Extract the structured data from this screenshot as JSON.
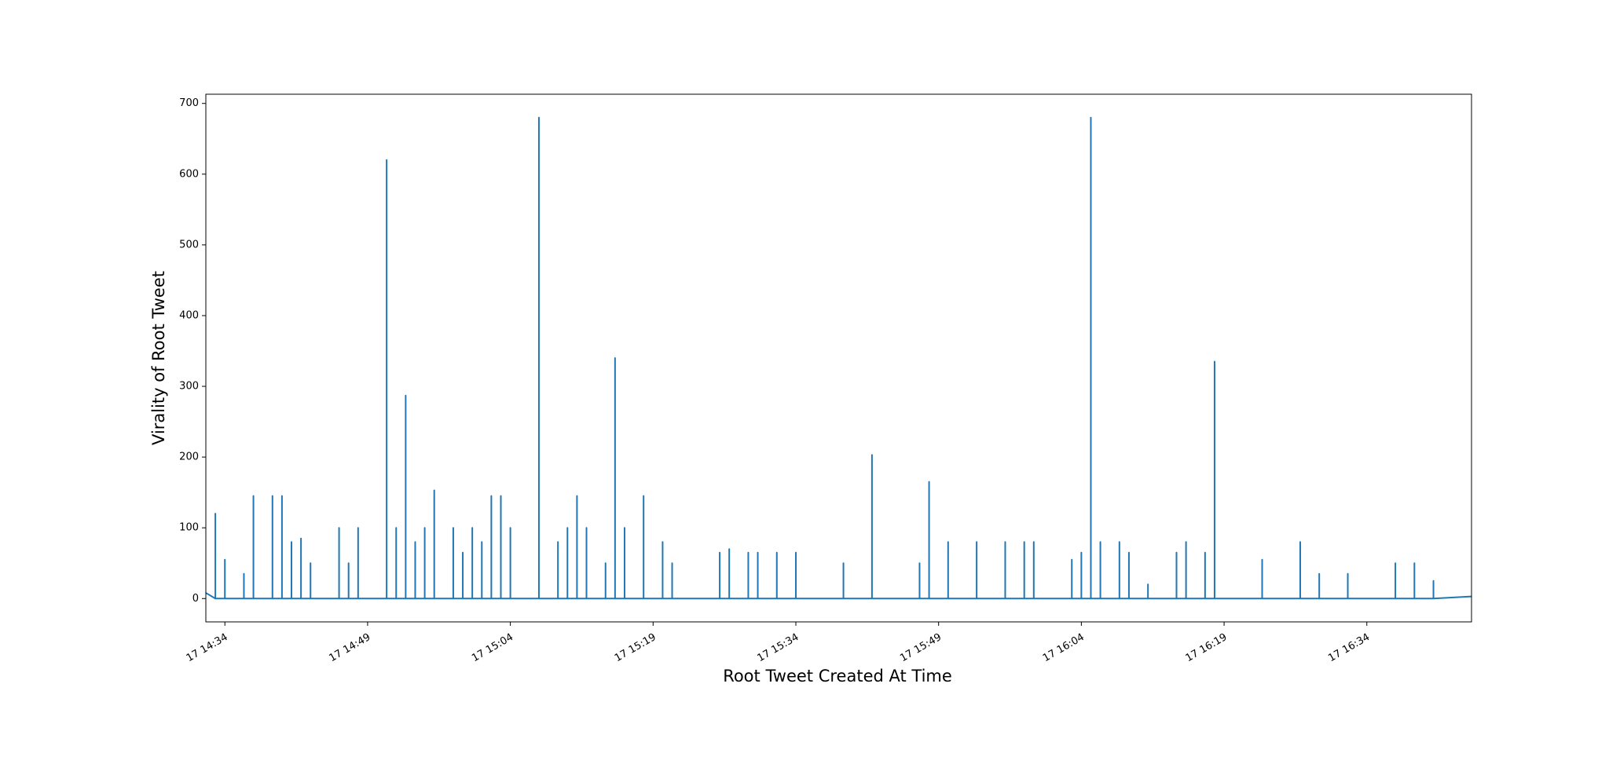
{
  "chart_data": {
    "type": "line",
    "xlabel": "Root Tweet Created At Time",
    "ylabel": "Virality of Root Tweet",
    "xlim": [
      "17 14:32",
      "17 16:45"
    ],
    "xticks": [
      "17 14:34",
      "17 14:49",
      "17 15:04",
      "17 15:19",
      "17 15:34",
      "17 15:49",
      "17 16:04",
      "17 16:19",
      "17 16:34"
    ],
    "ylim": [
      -33,
      713
    ],
    "yticks": [
      0,
      100,
      200,
      300,
      400,
      500,
      600,
      700
    ],
    "series": [
      {
        "color": "#1f77b4",
        "x": [
          "17 14:32",
          "17 14:33",
          "17 14:33",
          "17 14:33",
          "17 14:34",
          "17 14:34",
          "17 14:34",
          "17 14:36",
          "17 14:36",
          "17 14:36",
          "17 14:37",
          "17 14:37",
          "17 14:37",
          "17 14:39",
          "17 14:39",
          "17 14:39",
          "17 14:40",
          "17 14:40",
          "17 14:40",
          "17 14:41",
          "17 14:41",
          "17 14:41",
          "17 14:42",
          "17 14:42",
          "17 14:42",
          "17 14:43",
          "17 14:43",
          "17 14:43",
          "17 14:46",
          "17 14:46",
          "17 14:46",
          "17 14:47",
          "17 14:47",
          "17 14:47",
          "17 14:48",
          "17 14:48",
          "17 14:48",
          "17 14:51",
          "17 14:51",
          "17 14:51",
          "17 14:52",
          "17 14:52",
          "17 14:52",
          "17 14:53",
          "17 14:53",
          "17 14:53",
          "17 14:54",
          "17 14:54",
          "17 14:54",
          "17 14:55",
          "17 14:55",
          "17 14:55",
          "17 14:56",
          "17 14:56",
          "17 14:56",
          "17 14:58",
          "17 14:58",
          "17 14:58",
          "17 14:59",
          "17 14:59",
          "17 14:59",
          "17 15:00",
          "17 15:00",
          "17 15:00",
          "17 15:01",
          "17 15:01",
          "17 15:01",
          "17 15:02",
          "17 15:02",
          "17 15:02",
          "17 15:03",
          "17 15:03",
          "17 15:03",
          "17 15:04",
          "17 15:04",
          "17 15:04",
          "17 15:07",
          "17 15:07",
          "17 15:07",
          "17 15:09",
          "17 15:09",
          "17 15:09",
          "17 15:10",
          "17 15:10",
          "17 15:10",
          "17 15:11",
          "17 15:11",
          "17 15:11",
          "17 15:12",
          "17 15:12",
          "17 15:12",
          "17 15:14",
          "17 15:14",
          "17 15:14",
          "17 15:15",
          "17 15:15",
          "17 15:15",
          "17 15:16",
          "17 15:16",
          "17 15:16",
          "17 15:18",
          "17 15:18",
          "17 15:18",
          "17 15:20",
          "17 15:20",
          "17 15:20",
          "17 15:21",
          "17 15:21",
          "17 15:21",
          "17 15:26",
          "17 15:26",
          "17 15:26",
          "17 15:27",
          "17 15:27",
          "17 15:27",
          "17 15:29",
          "17 15:29",
          "17 15:29",
          "17 15:30",
          "17 15:30",
          "17 15:30",
          "17 15:32",
          "17 15:32",
          "17 15:32",
          "17 15:34",
          "17 15:34",
          "17 15:34",
          "17 15:39",
          "17 15:39",
          "17 15:39",
          "17 15:42",
          "17 15:42",
          "17 15:42",
          "17 15:47",
          "17 15:47",
          "17 15:47",
          "17 15:48",
          "17 15:48",
          "17 15:48",
          "17 15:50",
          "17 15:50",
          "17 15:50",
          "17 15:53",
          "17 15:53",
          "17 15:53",
          "17 15:56",
          "17 15:56",
          "17 15:56",
          "17 15:58",
          "17 15:58",
          "17 15:58",
          "17 15:59",
          "17 15:59",
          "17 15:59",
          "17 16:03",
          "17 16:03",
          "17 16:03",
          "17 16:04",
          "17 16:04",
          "17 16:04",
          "17 16:05",
          "17 16:05",
          "17 16:05",
          "17 16:06",
          "17 16:06",
          "17 16:06",
          "17 16:08",
          "17 16:08",
          "17 16:08",
          "17 16:09",
          "17 16:09",
          "17 16:09",
          "17 16:11",
          "17 16:11",
          "17 16:11",
          "17 16:14",
          "17 16:14",
          "17 16:14",
          "17 16:15",
          "17 16:15",
          "17 16:15",
          "17 16:17",
          "17 16:17",
          "17 16:17",
          "17 16:18",
          "17 16:18",
          "17 16:18",
          "17 16:23",
          "17 16:23",
          "17 16:23",
          "17 16:27",
          "17 16:27",
          "17 16:27",
          "17 16:29",
          "17 16:29",
          "17 16:29",
          "17 16:32",
          "17 16:32",
          "17 16:32",
          "17 16:37",
          "17 16:37",
          "17 16:37",
          "17 16:39",
          "17 16:39",
          "17 16:39",
          "17 16:41",
          "17 16:41",
          "17 16:41",
          "17 16:45"
        ],
        "values": [
          8,
          0,
          120,
          0,
          0,
          55,
          0,
          0,
          35,
          0,
          0,
          145,
          0,
          0,
          145,
          0,
          0,
          145,
          0,
          0,
          80,
          0,
          0,
          85,
          0,
          0,
          50,
          0,
          0,
          100,
          0,
          0,
          50,
          0,
          0,
          100,
          0,
          0,
          620,
          0,
          0,
          100,
          0,
          0,
          287,
          0,
          0,
          80,
          0,
          0,
          100,
          0,
          0,
          153,
          0,
          0,
          100,
          0,
          0,
          65,
          0,
          0,
          100,
          0,
          0,
          80,
          0,
          0,
          145,
          0,
          0,
          145,
          0,
          0,
          100,
          0,
          0,
          680,
          0,
          0,
          80,
          0,
          0,
          100,
          0,
          0,
          145,
          0,
          0,
          100,
          0,
          0,
          50,
          0,
          0,
          340,
          0,
          0,
          100,
          0,
          0,
          145,
          0,
          0,
          80,
          0,
          0,
          50,
          0,
          0,
          65,
          0,
          0,
          70,
          0,
          0,
          65,
          0,
          0,
          65,
          0,
          0,
          65,
          0,
          0,
          65,
          0,
          0,
          50,
          0,
          0,
          203,
          0,
          0,
          50,
          0,
          0,
          165,
          0,
          0,
          80,
          0,
          0,
          80,
          0,
          0,
          80,
          0,
          0,
          80,
          0,
          0,
          80,
          0,
          0,
          55,
          0,
          0,
          65,
          0,
          0,
          680,
          0,
          0,
          80,
          0,
          0,
          80,
          0,
          0,
          65,
          0,
          0,
          20,
          0,
          0,
          65,
          0,
          0,
          80,
          0,
          0,
          65,
          0,
          0,
          335,
          0,
          0,
          55,
          0,
          0,
          80,
          0,
          0,
          35,
          0,
          0,
          35,
          0,
          0,
          50,
          0,
          0,
          50,
          0,
          0,
          25,
          0,
          3
        ]
      }
    ]
  }
}
